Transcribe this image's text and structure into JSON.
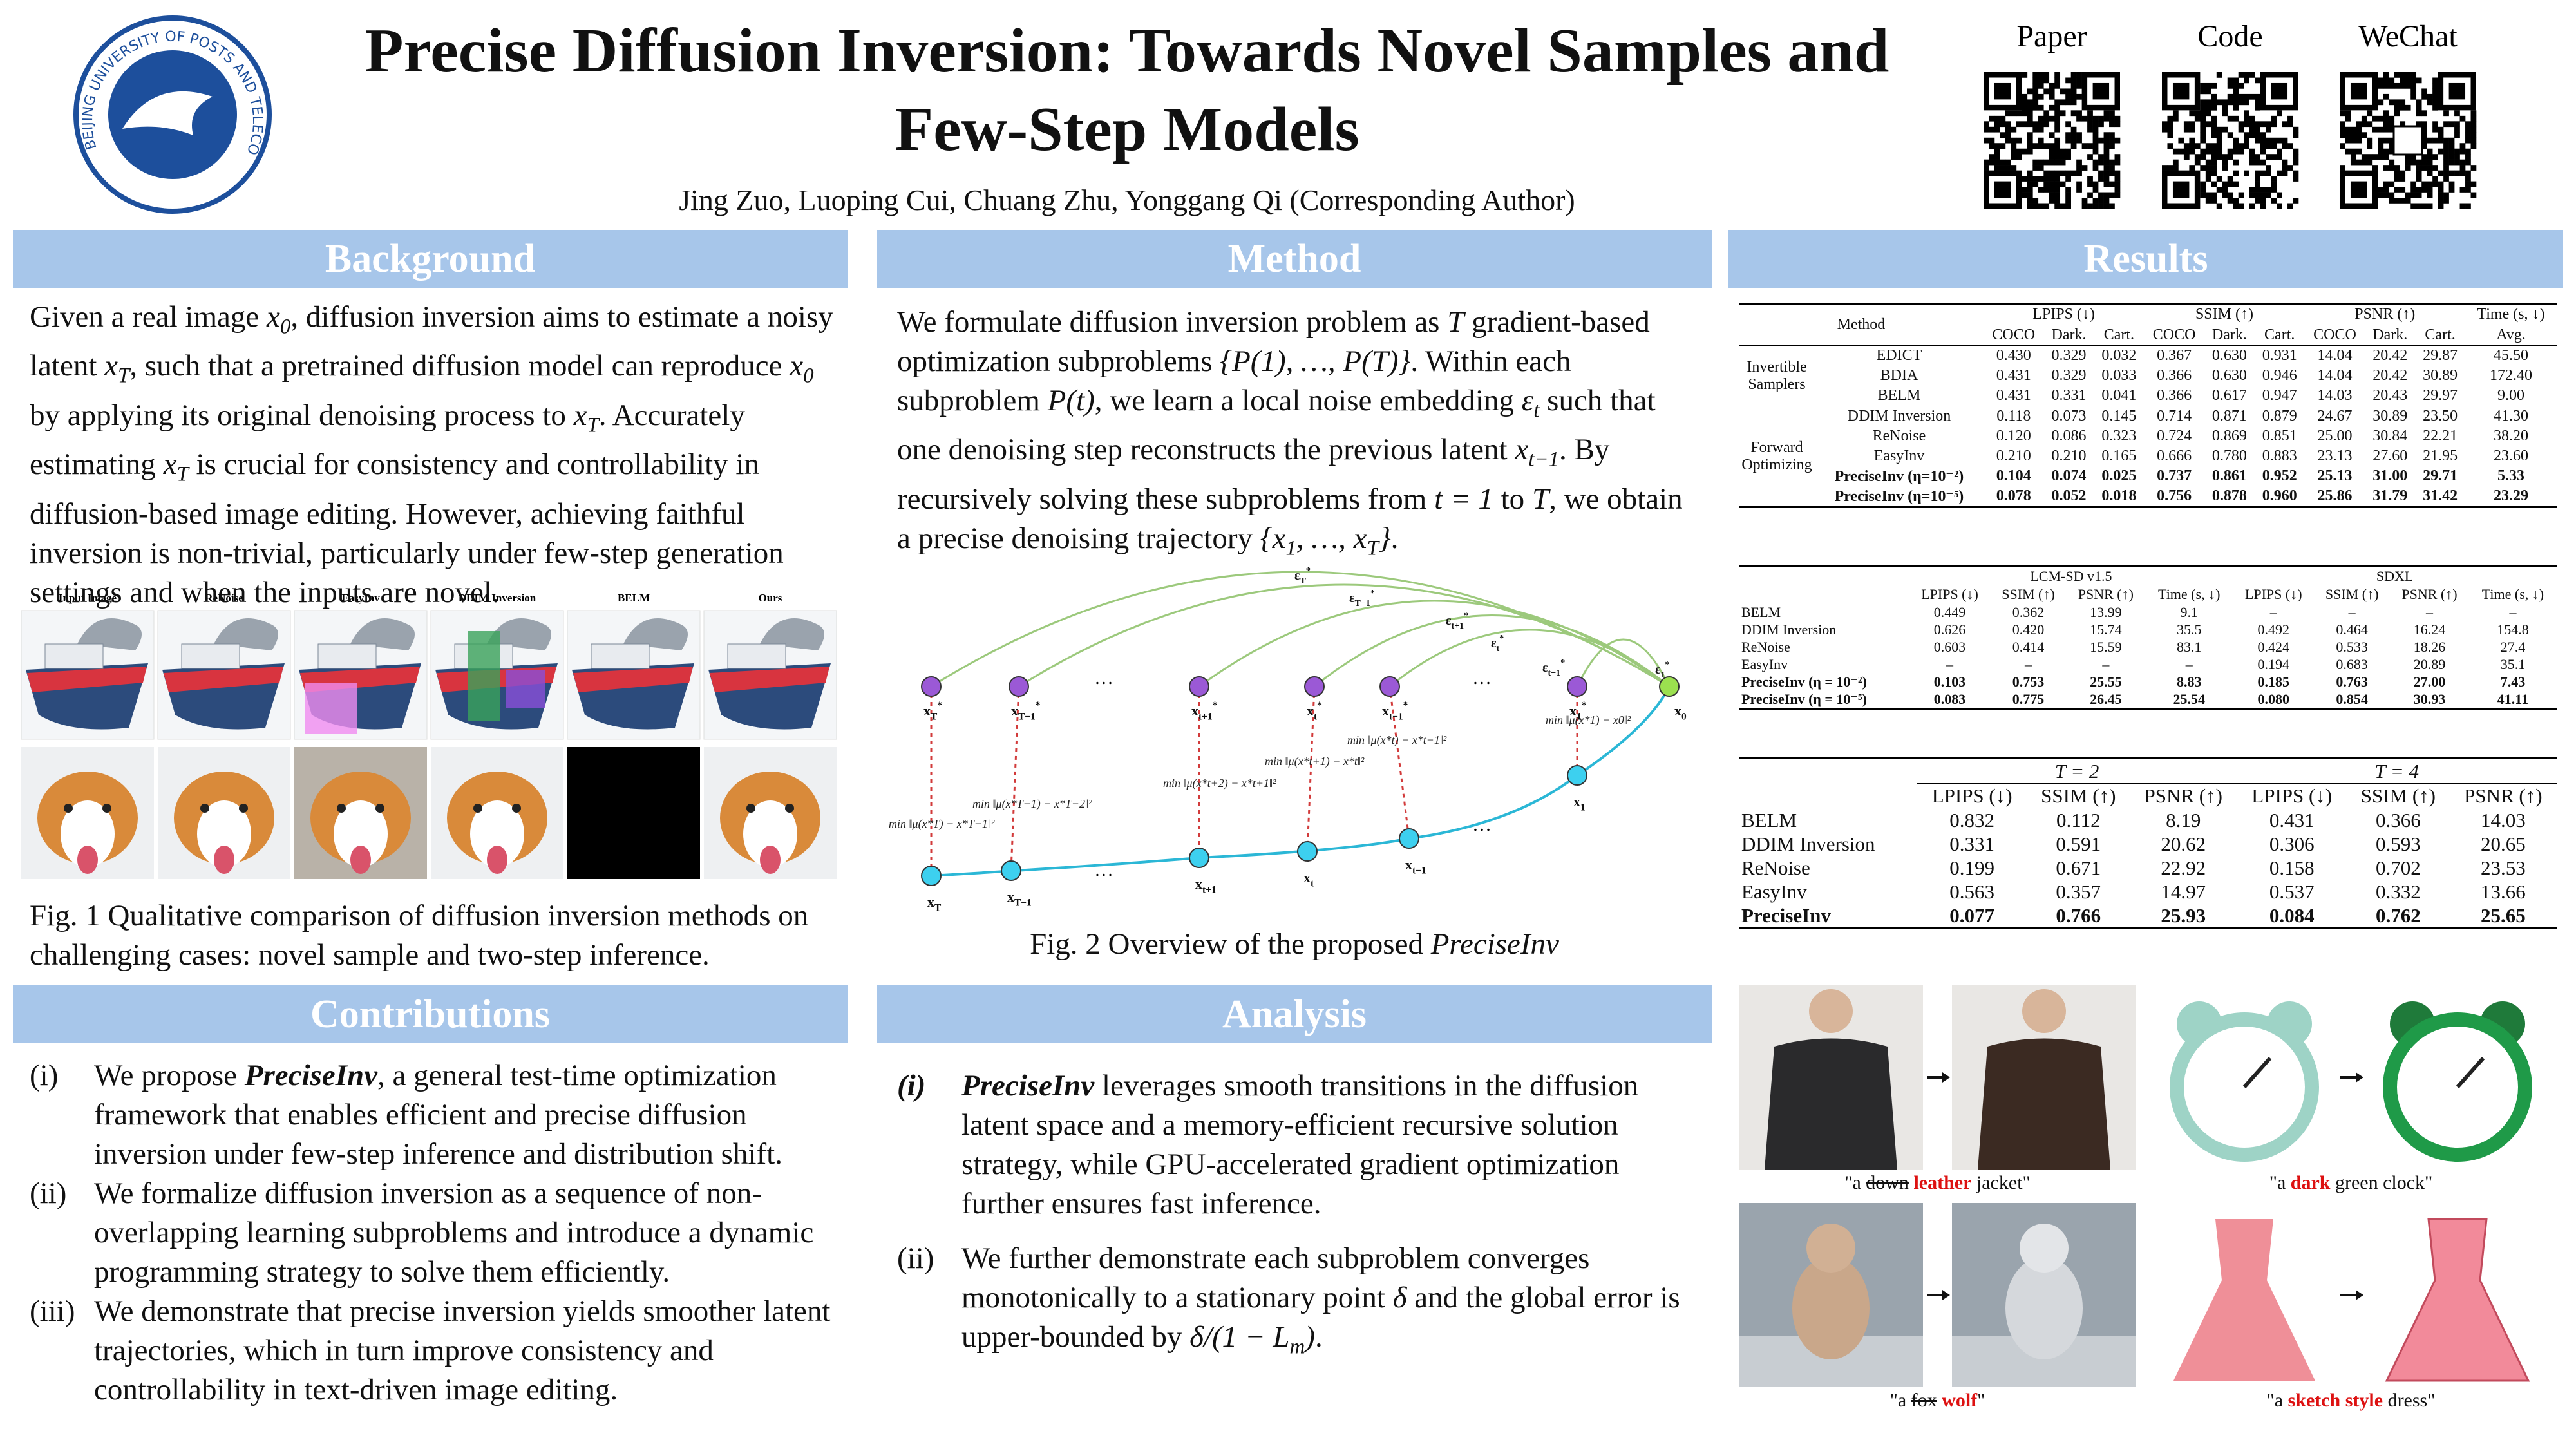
{
  "header": {
    "title": "Precise Diffusion Inversion: Towards Novel Samples and Few-Step Models",
    "authors": "Jing Zuo, Luoping Cui, Chuang Zhu, Yonggang Qi (Corresponding Author)",
    "logo_text": "BEIJING UNIVERSITY OF POSTS AND TELECOMMUNICATIONS",
    "qr_labels": [
      "Paper",
      "Code",
      "WeChat"
    ]
  },
  "background": {
    "heading": "Background",
    "text": [
      "Given a real image ",
      {
        "m": "x",
        "sub": "0"
      },
      ", diffusion inversion aims to estimate a noisy latent ",
      {
        "m": "x",
        "sub": "T"
      },
      ", such that a pretrained diffusion model can reproduce ",
      {
        "m": "x",
        "sub": "0"
      },
      " by applying its original denoising process to ",
      {
        "m": "x",
        "sub": "T"
      },
      ". Accurately estimating ",
      {
        "m": "x",
        "sub": "T"
      },
      " is crucial for consistency and controllability in diffusion-based image editing. However, achieving faithful inversion is non-trivial, particularly under few-step generation settings and when the inputs are novel."
    ],
    "figure": {
      "labels": [
        "Input Image",
        "ReNoise",
        "EasyInv",
        "DDIM Inversion",
        "BELM",
        "Ours"
      ],
      "caption": "Fig. 1 Qualitative comparison of diffusion inversion methods on challenging cases: novel sample and two-step inference."
    }
  },
  "method": {
    "heading": "Method",
    "text": [
      "We formulate diffusion inversion problem as ",
      {
        "m": "T"
      },
      " gradient-based optimization subproblems ",
      {
        "m": "{P(1), …, P(T)}"
      },
      ". Within each subproblem ",
      {
        "m": "P(t)"
      },
      ", we learn a local noise embedding ",
      {
        "m": "ε",
        "sub": "t"
      },
      " such that one denoising step reconstructs the previous latent ",
      {
        "m": "x",
        "sub": "t−1"
      },
      ". By recursively solving these subproblems from ",
      {
        "m": "t = 1"
      },
      " to ",
      {
        "m": "T"
      },
      ", we obtain a precise denoising trajectory ",
      {
        "m": "{x",
        "sub": "1"
      },
      {
        "m": ", …, x",
        "sub": "T"
      },
      {
        "m": "}"
      },
      "."
    ],
    "figure": {
      "ellipsis": "…",
      "top_nodes": [
        {
          "base": "x",
          "sub": "T",
          "sup": "*"
        },
        {
          "base": "x",
          "sub": "T−1",
          "sup": "*"
        },
        {
          "base": "x",
          "sub": "t+1",
          "sup": "*"
        },
        {
          "base": "x",
          "sub": "t",
          "sup": "*"
        },
        {
          "base": "x",
          "sub": "t−1",
          "sup": "*"
        },
        {
          "base": "x",
          "sub": "1",
          "sup": "*"
        },
        {
          "base": "x",
          "sub": "0"
        }
      ],
      "bottom_nodes": [
        {
          "base": "x",
          "sub": "T"
        },
        {
          "base": "x",
          "sub": "T−1"
        },
        {
          "base": "x",
          "sub": "t+1"
        },
        {
          "base": "x",
          "sub": "t"
        },
        {
          "base": "x",
          "sub": "t−1"
        },
        {
          "base": "x",
          "sub": "1"
        }
      ],
      "eps": [
        {
          "base": "ε",
          "sub": "T",
          "sup": "*"
        },
        {
          "base": "ε",
          "sub": "T−1",
          "sup": "*"
        },
        {
          "base": "ε",
          "sub": "t+1",
          "sup": "*"
        },
        {
          "base": "ε",
          "sub": "t",
          "sup": "*"
        },
        {
          "base": "ε",
          "sub": "t−1",
          "sup": "*"
        },
        {
          "base": "ε",
          "sub": "1",
          "sup": "*"
        }
      ],
      "mins": [
        "min ‖μ(x*T) − x*T−1‖²",
        "min ‖μ(x*T−1) − x*T−2‖²",
        "min ‖μ(x*t+2) − x*t+1‖²",
        "min ‖μ(x*t+1) − x*t‖²",
        "min ‖μ(x*t) − x*t−1‖²",
        "min ‖μ(x*1) − x0‖²"
      ],
      "caption": [
        "Fig. 2 Overview of the proposed ",
        {
          "em": "PreciseInv"
        }
      ]
    }
  },
  "contributions": {
    "heading": "Contributions",
    "items": [
      {
        "num": "(i)",
        "text": [
          "We propose ",
          {
            "bi": "PreciseInv"
          },
          ", a general test-time optimization framework that enables efficient and precise diffusion inversion under few-step inference and distribution shift."
        ]
      },
      {
        "num": "(ii)",
        "text": [
          "We formalize diffusion inversion as a sequence of non-overlapping learning subproblems and introduce a dynamic programming strategy to solve them efficiently."
        ]
      },
      {
        "num": "(iii)",
        "text": [
          "We demonstrate that precise inversion yields smoother latent trajectories, which in turn improve consistency and controllability in text-driven image editing."
        ]
      }
    ]
  },
  "analysis": {
    "heading": "Analysis",
    "items": [
      {
        "num": "(i)",
        "text": [
          {
            "bi": "PreciseInv"
          },
          " leverages smooth transitions in the diffusion latent space and a memory-efficient recursive solution strategy, while GPU-accelerated gradient optimization further ensures fast inference."
        ]
      },
      {
        "num": "(ii)",
        "text": [
          "We further demonstrate each subproblem converges monotonically to a stationary point ",
          {
            "m": "δ"
          },
          " and the global error is upper-bounded by ",
          {
            "m": "δ/(1 − L",
            "sub": "m"
          },
          {
            "m": ")"
          },
          "."
        ]
      }
    ]
  },
  "results": {
    "heading": "Results",
    "table1": {
      "head": [
        [
          "Method",
          "LPIPS (↓)",
          "SSIM (↑)",
          "PSNR (↑)",
          "Time (s, ↓)"
        ],
        [
          "COCO",
          "Dark.",
          "Cart.",
          "COCO",
          "Dark.",
          "Cart.",
          "COCO",
          "Dark.",
          "Cart.",
          "Avg."
        ]
      ],
      "groups": [
        {
          "label": "Invertible Samplers",
          "rows": [
            [
              "EDICT",
              "0.430",
              "0.329",
              "0.032",
              "0.367",
              "0.630",
              "0.931",
              "14.04",
              "20.42",
              "29.87",
              "45.50"
            ],
            [
              "BDIA",
              "0.431",
              "0.329",
              "0.033",
              "0.366",
              "0.630",
              "0.946",
              "14.04",
              "20.42",
              "30.89",
              "172.40"
            ],
            [
              "BELM",
              "0.431",
              "0.331",
              "0.041",
              "0.366",
              "0.617",
              "0.947",
              "14.03",
              "20.43",
              "29.97",
              "9.00"
            ]
          ]
        },
        {
          "label": "Forward Optimizing",
          "rows": [
            [
              "DDIM Inversion",
              "0.118",
              "0.073",
              "0.145",
              "0.714",
              "0.871",
              "0.879",
              "24.67",
              "30.89",
              "23.50",
              "41.30"
            ],
            [
              "ReNoise",
              "0.120",
              "0.086",
              "0.323",
              "0.724",
              "0.869",
              "0.851",
              "25.00",
              "30.84",
              "22.21",
              "38.20"
            ],
            [
              "EasyInv",
              "0.210",
              "0.210",
              "0.165",
              "0.666",
              "0.780",
              "0.883",
              "23.13",
              "27.60",
              "21.95",
              "23.60"
            ],
            [
              "PreciseInv (η=10⁻²)",
              "0.104",
              "0.074",
              "0.025",
              "0.737",
              "0.861",
              "0.952",
              "25.13",
              "31.00",
              "29.71",
              "5.33"
            ],
            [
              "PreciseInv (η=10⁻⁵)",
              "0.078",
              "0.052",
              "0.018",
              "0.756",
              "0.878",
              "0.960",
              "25.86",
              "31.79",
              "31.42",
              "23.29"
            ]
          ]
        }
      ]
    },
    "table2": {
      "head": [
        [
          "LCM-SD v1.5",
          "SDXL"
        ],
        [
          "LPIPS (↓)",
          "SSIM (↑)",
          "PSNR (↑)",
          "Time (s, ↓)",
          "LPIPS (↓)",
          "SSIM (↑)",
          "PSNR (↑)",
          "Time (s, ↓)"
        ]
      ],
      "rows": [
        [
          "BELM",
          "0.449",
          "0.362",
          "13.99",
          "9.1",
          "–",
          "–",
          "–",
          "–"
        ],
        [
          "DDIM Inversion",
          "0.626",
          "0.420",
          "15.74",
          "35.5",
          "0.492",
          "0.464",
          "16.24",
          "154.8"
        ],
        [
          "ReNoise",
          "0.603",
          "0.414",
          "15.59",
          "83.1",
          "0.424",
          "0.533",
          "18.26",
          "27.4"
        ],
        [
          "EasyInv",
          "–",
          "–",
          "–",
          "–",
          "0.194",
          "0.683",
          "20.89",
          "35.1"
        ],
        [
          "PreciseInv (η = 10⁻²)",
          "0.103",
          "0.753",
          "25.55",
          "8.83",
          "0.185",
          "0.763",
          "27.00",
          "7.43"
        ],
        [
          "PreciseInv (η = 10⁻⁵)",
          "0.083",
          "0.775",
          "26.45",
          "25.54",
          "0.080",
          "0.854",
          "30.93",
          "41.11"
        ]
      ]
    },
    "table3": {
      "head": [
        [
          "T = 2",
          "T = 4"
        ],
        [
          "LPIPS (↓)",
          "SSIM (↑)",
          "PSNR (↑)",
          "LPIPS (↓)",
          "SSIM (↑)",
          "PSNR (↑)"
        ]
      ],
      "rows": [
        [
          "BELM",
          "0.832",
          "0.112",
          "8.19",
          "0.431",
          "0.366",
          "14.03"
        ],
        [
          "DDIM Inversion",
          "0.331",
          "0.591",
          "20.62",
          "0.306",
          "0.593",
          "20.65"
        ],
        [
          "ReNoise",
          "0.199",
          "0.671",
          "22.92",
          "0.158",
          "0.702",
          "23.53"
        ],
        [
          "EasyInv",
          "0.563",
          "0.357",
          "14.97",
          "0.537",
          "0.332",
          "13.66"
        ],
        [
          "PreciseInv",
          "0.077",
          "0.766",
          "25.93",
          "0.084",
          "0.762",
          "25.65"
        ]
      ]
    },
    "edits": [
      {
        "caption": [
          "\"a ",
          {
            "s": "down"
          },
          " ",
          {
            "r": "leather"
          },
          " jacket\""
        ]
      },
      {
        "caption": [
          "\"a ",
          {
            "r": "dark"
          },
          " green clock\""
        ]
      },
      {
        "caption": [
          "\"a ",
          {
            "s": "fox"
          },
          " ",
          {
            "r": "wolf"
          },
          "\""
        ]
      },
      {
        "caption": [
          "\"a ",
          {
            "r": "sketch style"
          },
          " dress\""
        ]
      }
    ]
  }
}
